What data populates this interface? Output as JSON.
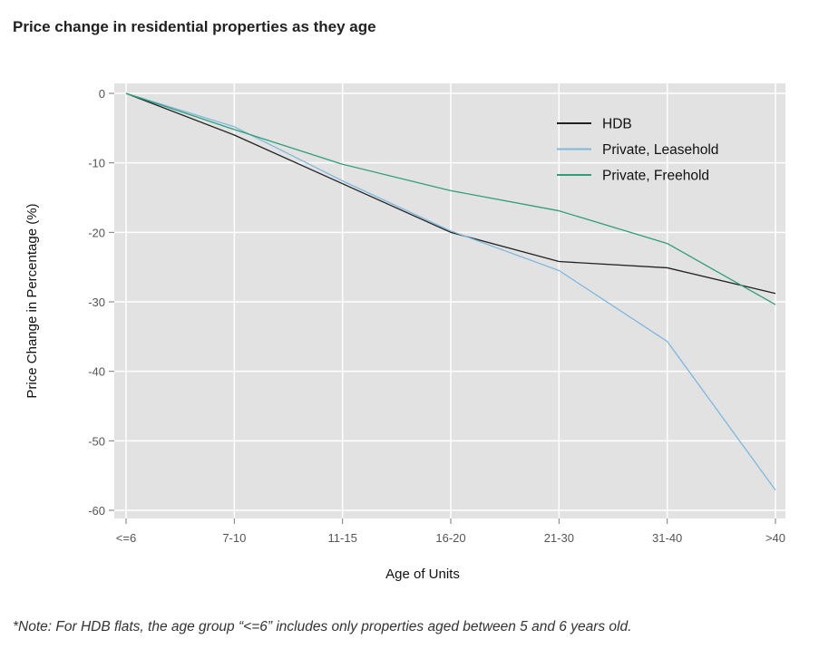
{
  "chart_data": {
    "type": "line",
    "title": "Price change in residential properties as they age",
    "xlabel": "Age of Units",
    "ylabel": "Price Change in Percentage (%)",
    "categories": [
      "<=6",
      "7-10",
      "11-15",
      "16-20",
      "21-30",
      "31-40",
      ">40"
    ],
    "ylim": [
      -61,
      1
    ],
    "yticks": [
      0,
      -10,
      -20,
      -30,
      -40,
      -50,
      -60
    ],
    "grid": true,
    "legend_position": "top-right",
    "series": [
      {
        "name": "HDB",
        "color": "#222222",
        "values": [
          0,
          -6,
          -13,
          -20,
          -24.2,
          -25.1,
          -28.8
        ]
      },
      {
        "name": "Private, Leasehold",
        "color": "#7fb8dd",
        "values": [
          0,
          -4.8,
          -12.6,
          -19.8,
          -25.5,
          -35.7,
          -57.1
        ]
      },
      {
        "name": "Private, Freehold",
        "color": "#2f9e7a",
        "values": [
          0,
          -5.2,
          -10.2,
          -14,
          -16.9,
          -21.6,
          -30.4
        ]
      }
    ],
    "footnote": "*Note: For HDB flats, the age group “<=6” includes only properties aged between 5 and 6 years old."
  }
}
